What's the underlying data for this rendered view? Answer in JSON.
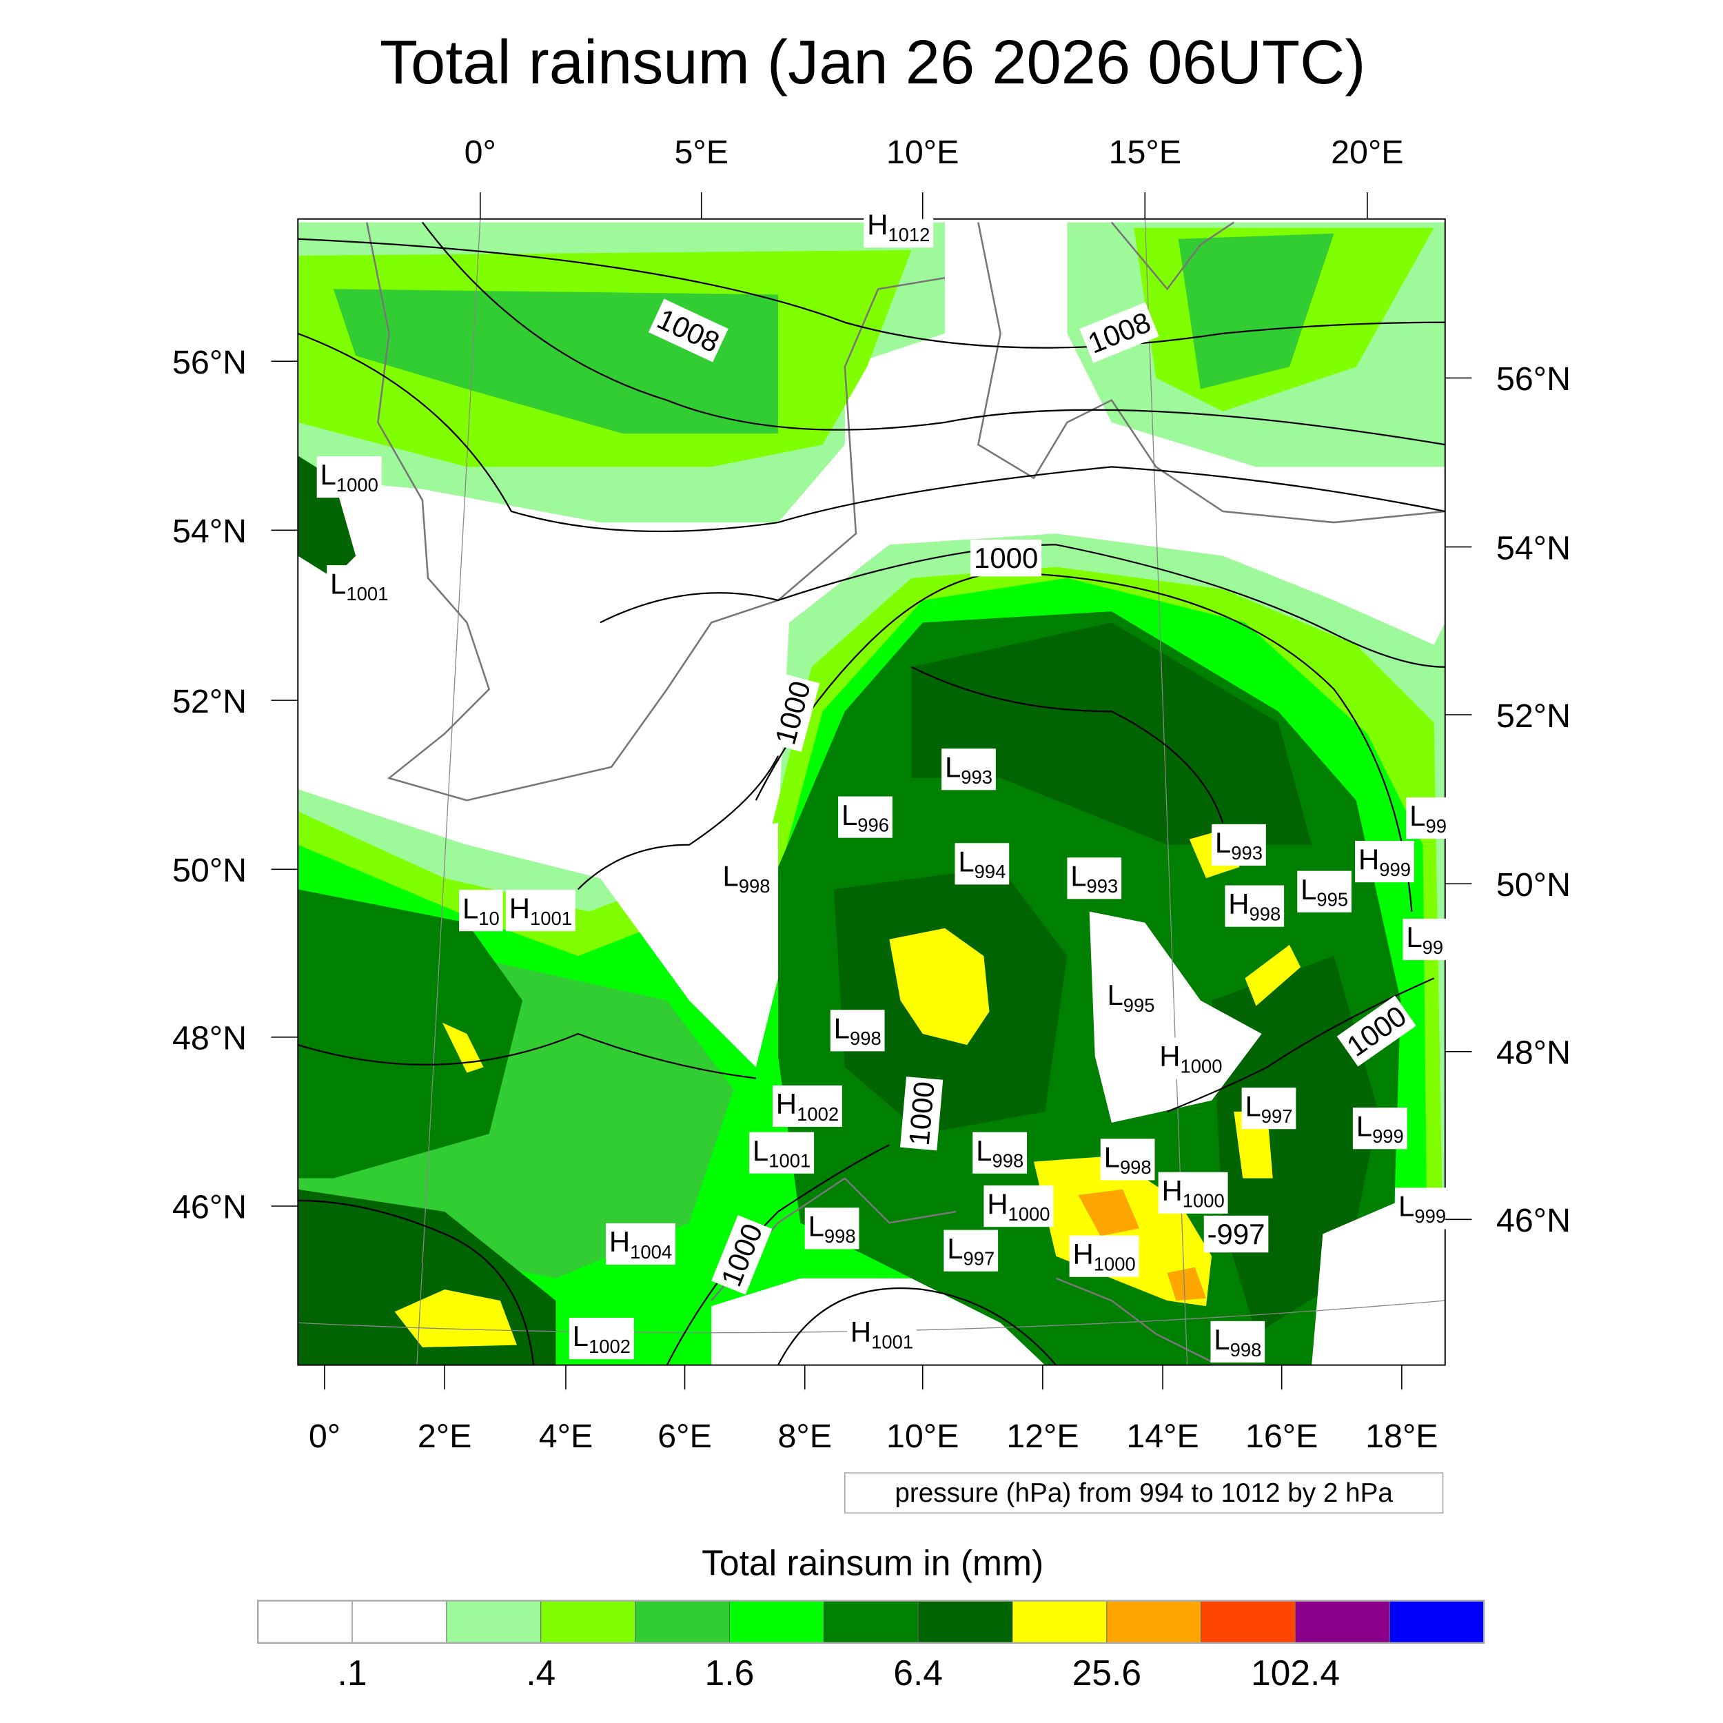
{
  "title": "Total rainsum (Jan 26 2026 06UTC)",
  "axes": {
    "top_lon": [
      "0°",
      "5°E",
      "10°E",
      "15°E",
      "20°E"
    ],
    "bottom_lon": [
      "0°",
      "2°E",
      "4°E",
      "6°E",
      "8°E",
      "10°E",
      "12°E",
      "14°E",
      "16°E",
      "18°E"
    ],
    "left_lat": [
      "56°N",
      "54°N",
      "52°N",
      "50°N",
      "48°N",
      "46°N"
    ],
    "right_lat": [
      "56°N",
      "54°N",
      "52°N",
      "50°N",
      "48°N",
      "46°N"
    ]
  },
  "contour_info": "pressure (hPa) from 994 to 1012 by 2 hPa",
  "pressure_labels": [
    {
      "m": "H",
      "v": "1012"
    },
    {
      "m": "",
      "v": "1008"
    },
    {
      "m": "",
      "v": "1008"
    },
    {
      "m": "L",
      "v": "1000"
    },
    {
      "m": "L",
      "v": "1001"
    },
    {
      "m": "",
      "v": "1000"
    },
    {
      "m": "",
      "v": "1000"
    },
    {
      "m": "L",
      "v": "993"
    },
    {
      "m": "L",
      "v": "996"
    },
    {
      "m": "L",
      "v": "998"
    },
    {
      "m": "L",
      "v": "994"
    },
    {
      "m": "L",
      "v": "993"
    },
    {
      "m": "L",
      "v": "993"
    },
    {
      "m": "H",
      "v": "999"
    },
    {
      "m": "L",
      "v": "99"
    },
    {
      "m": "L",
      "v": "995"
    },
    {
      "m": "H",
      "v": "998"
    },
    {
      "m": "L",
      "v": "10"
    },
    {
      "m": "H",
      "v": "1001"
    },
    {
      "m": "L",
      "v": "99"
    },
    {
      "m": "L",
      "v": "995"
    },
    {
      "m": "L",
      "v": "998"
    },
    {
      "m": "",
      "v": "1000"
    },
    {
      "m": "H",
      "v": "1000"
    },
    {
      "m": "",
      "v": "1000"
    },
    {
      "m": "L",
      "v": "997"
    },
    {
      "m": "L",
      "v": "999"
    },
    {
      "m": "H",
      "v": "1002"
    },
    {
      "m": "L",
      "v": "1001"
    },
    {
      "m": "L",
      "v": "998"
    },
    {
      "m": "L",
      "v": "998"
    },
    {
      "m": "H",
      "v": "1000"
    },
    {
      "m": "",
      "v": "-997"
    },
    {
      "m": "H",
      "v": "1000"
    },
    {
      "m": "L",
      "v": "999"
    },
    {
      "m": "H",
      "v": "1004"
    },
    {
      "m": "L",
      "v": "998"
    },
    {
      "m": "L",
      "v": "997"
    },
    {
      "m": "",
      "v": "1000"
    },
    {
      "m": "H",
      "v": "1000"
    },
    {
      "m": "L",
      "v": "1002"
    },
    {
      "m": "H",
      "v": "1001"
    },
    {
      "m": "L",
      "v": "998"
    }
  ],
  "colorbar": {
    "title": "Total rainsum in (mm)",
    "colors": [
      "#ffffff",
      "#ffffff",
      "#9ef99a",
      "#80ff00",
      "#32cd32",
      "#00ff00",
      "#008000",
      "#006400",
      "#ffff00",
      "#ffa500",
      "#ff4500",
      "#8b008b",
      "#0000ff"
    ],
    "labels": [
      ".1",
      ".4",
      "1.6",
      "6.4",
      "25.6",
      "102.4"
    ]
  }
}
